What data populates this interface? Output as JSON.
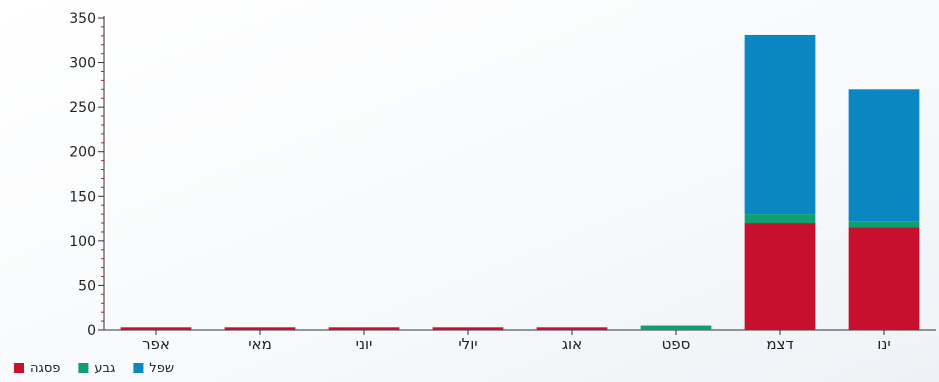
{
  "chart_data": {
    "type": "bar",
    "stacked": true,
    "categories": [
      "אפר",
      "מאי",
      "יוני",
      "יולי",
      "אוג",
      "ספט",
      "דצמ",
      "ינו"
    ],
    "series": [
      {
        "name": "פסגה",
        "color": "#c8102e",
        "values": [
          3,
          3,
          3,
          3,
          3,
          0,
          120,
          115
        ]
      },
      {
        "name": "גבע",
        "color": "#10a070",
        "values": [
          0,
          0,
          0,
          0,
          0,
          5,
          10,
          7
        ]
      },
      {
        "name": "שפל",
        "color": "#0a87c2",
        "values": [
          0,
          0,
          0,
          0,
          0,
          0,
          201,
          148
        ]
      }
    ],
    "ylim": [
      0,
      350
    ],
    "yticks": [
      0,
      50,
      100,
      150,
      200,
      250,
      300,
      350
    ],
    "grid": false,
    "legend_position": "bottom-left"
  }
}
